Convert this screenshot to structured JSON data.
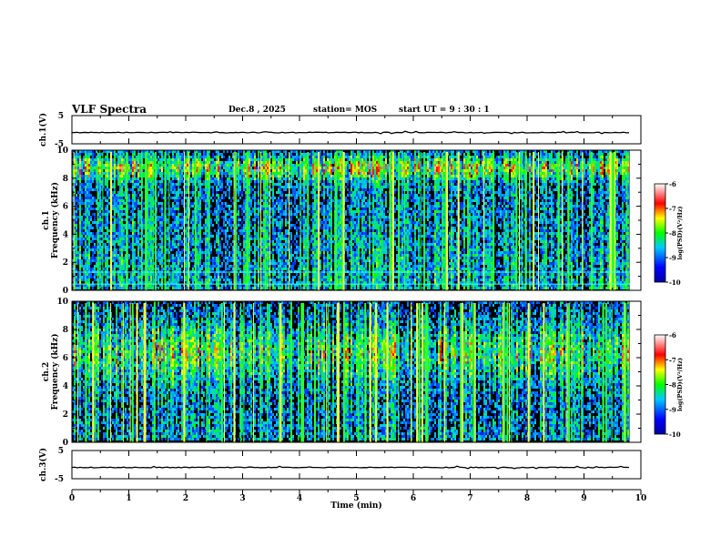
{
  "header": {
    "title": "VLF Spectra",
    "date": "Dec.8 , 2025",
    "station": "station= MOS",
    "start": "start  UT =   9 : 30 : 1"
  },
  "chart_data": [
    {
      "type": "line",
      "name": "ch1-waveform",
      "ylabel": "ch.1(V)",
      "ylim": [
        -5,
        5
      ],
      "yticks": [
        "5",
        "-5"
      ],
      "xlim": [
        0,
        10
      ],
      "level": -1.0
    },
    {
      "type": "heatmap",
      "name": "ch1-spectrogram",
      "ylabel": "ch.1\nFrequency (kHz)",
      "ylabel_lines": [
        "ch.1",
        "Frequency (kHz)"
      ],
      "xlim": [
        0,
        10
      ],
      "ylim": [
        0,
        10
      ],
      "yticks": [
        "0",
        "2",
        "4",
        "6",
        "8",
        "10"
      ],
      "data_end_min": 9.8,
      "colorbar": {
        "label": "log(PSD)(V²/Hz)",
        "range": [
          -10,
          -6
        ],
        "ticks": [
          "-6",
          "-7",
          "-8",
          "-9",
          "-10"
        ]
      }
    },
    {
      "type": "heatmap",
      "name": "ch2-spectrogram",
      "ylabel": "ch.2\nFrequency (kHz)",
      "ylabel_lines": [
        "ch.2",
        "Frequency (kHz)"
      ],
      "xlim": [
        0,
        10
      ],
      "ylim": [
        0,
        10
      ],
      "yticks": [
        "0",
        "2",
        "4",
        "6",
        "8",
        "10"
      ],
      "data_end_min": 9.8,
      "colorbar": {
        "label": "log(PSD)(V²/Hz)",
        "range": [
          -10,
          -6
        ],
        "ticks": [
          "-6",
          "-7",
          "-8",
          "-9",
          "-10"
        ]
      }
    },
    {
      "type": "line",
      "name": "ch3-waveform",
      "ylabel": "ch.3(V)",
      "ylim": [
        -5,
        5
      ],
      "yticks": [
        "5",
        "-5"
      ],
      "xlim": [
        0,
        10
      ],
      "level": -1.0
    }
  ],
  "xaxis": {
    "label": "Time (min)",
    "ticks": [
      "0",
      "1",
      "2",
      "3",
      "4",
      "5",
      "6",
      "7",
      "8",
      "9",
      "10"
    ]
  },
  "colors": {
    "low": "#000080",
    "high": "#ff0000",
    "background": "#000000"
  }
}
